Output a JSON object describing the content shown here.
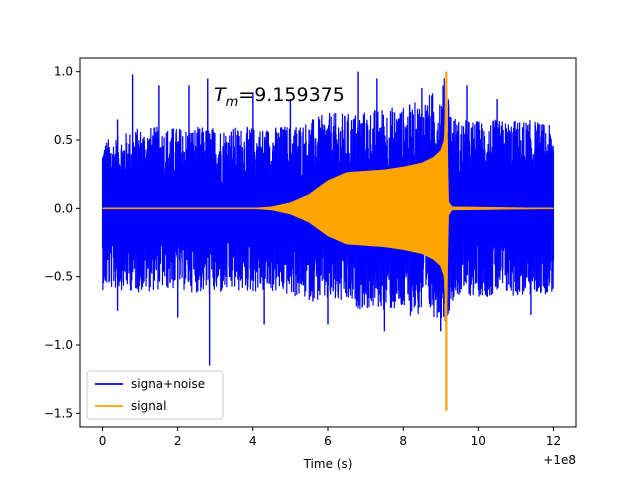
{
  "chart_data": {
    "type": "line",
    "title": "",
    "xlabel": "Time (s)",
    "ylabel": "",
    "x_offset_label": "+1e8",
    "annotation": {
      "text_main": "T",
      "text_sub": "m",
      "text_value": "=9.159375",
      "x": 3.0,
      "y": 0.8
    },
    "xlim": [
      -0.6,
      12.6
    ],
    "ylim": [
      -1.6,
      1.1
    ],
    "xticks": [
      0,
      2,
      4,
      6,
      8,
      10,
      12
    ],
    "xtick_labels": [
      "0",
      "2",
      "4",
      "6",
      "8",
      "10",
      "12"
    ],
    "yticks": [
      -1.5,
      -1.0,
      -0.5,
      0.0,
      0.5,
      1.0
    ],
    "ytick_labels": [
      "−1.5",
      "−1.0",
      "−0.5",
      "0.0",
      "0.5",
      "1.0"
    ],
    "legend": {
      "placement": "lower-left",
      "entries": [
        {
          "name": "signa+noise",
          "color": "#0000ff"
        },
        {
          "name": "signal",
          "color": "#ffa500"
        }
      ]
    },
    "series": [
      {
        "name": "signa+noise",
        "color": "#0000ff",
        "x": [
          0.0,
          0.5,
          1.0,
          1.5,
          2.0,
          2.5,
          3.0,
          3.5,
          4.0,
          4.5,
          5.0,
          5.5,
          6.0,
          6.5,
          7.0,
          7.5,
          8.0,
          8.5,
          9.0,
          9.15,
          9.3,
          9.5,
          10.0,
          10.5,
          11.0,
          11.5,
          12.0
        ],
        "upper": [
          0.5,
          0.55,
          0.6,
          0.6,
          0.6,
          0.6,
          0.6,
          0.6,
          0.6,
          0.6,
          0.62,
          0.65,
          0.7,
          0.7,
          0.72,
          0.75,
          0.75,
          0.8,
          0.9,
          1.0,
          0.7,
          0.65,
          0.65,
          0.65,
          0.65,
          0.65,
          0.6
        ],
        "lower": [
          -0.6,
          -0.6,
          -0.62,
          -0.6,
          -0.6,
          -0.62,
          -0.65,
          -0.62,
          -0.62,
          -0.62,
          -0.65,
          -0.68,
          -0.7,
          -0.72,
          -0.75,
          -0.75,
          -0.78,
          -0.8,
          -0.8,
          -0.85,
          -0.68,
          -0.65,
          -0.65,
          -0.65,
          -0.65,
          -0.65,
          -0.62
        ],
        "spikes": [
          {
            "x": 0.4,
            "y": 0.65
          },
          {
            "x": 0.4,
            "y": -0.75
          },
          {
            "x": 0.8,
            "y": 0.98
          },
          {
            "x": 1.5,
            "y": 0.9
          },
          {
            "x": 2.0,
            "y": -0.8
          },
          {
            "x": 2.3,
            "y": 0.9
          },
          {
            "x": 2.8,
            "y": 0.95
          },
          {
            "x": 2.85,
            "y": -1.15
          },
          {
            "x": 4.0,
            "y": 0.85
          },
          {
            "x": 4.3,
            "y": -0.85
          },
          {
            "x": 5.0,
            "y": 0.8
          },
          {
            "x": 6.0,
            "y": -0.85
          },
          {
            "x": 6.8,
            "y": 1.0
          },
          {
            "x": 7.3,
            "y": 0.95
          },
          {
            "x": 7.5,
            "y": -0.9
          },
          {
            "x": 8.5,
            "y": 0.88
          },
          {
            "x": 9.0,
            "y": -0.9
          },
          {
            "x": 9.7,
            "y": 0.9
          },
          {
            "x": 10.5,
            "y": 0.8
          },
          {
            "x": 11.4,
            "y": -0.78
          }
        ]
      },
      {
        "name": "signal",
        "color": "#ffa500",
        "x": [
          0.0,
          4.0,
          4.5,
          5.0,
          5.5,
          6.0,
          6.5,
          7.0,
          7.5,
          8.0,
          8.5,
          8.8,
          9.0,
          9.1,
          9.15,
          9.2,
          9.3,
          12.0
        ],
        "amplitude": [
          0.0,
          0.0,
          0.01,
          0.04,
          0.1,
          0.2,
          0.26,
          0.27,
          0.28,
          0.3,
          0.33,
          0.37,
          0.42,
          0.5,
          1.0,
          0.05,
          0.01,
          0.0
        ],
        "peak": {
          "x": 9.15,
          "max": 1.0,
          "min": -1.48
        }
      }
    ]
  }
}
